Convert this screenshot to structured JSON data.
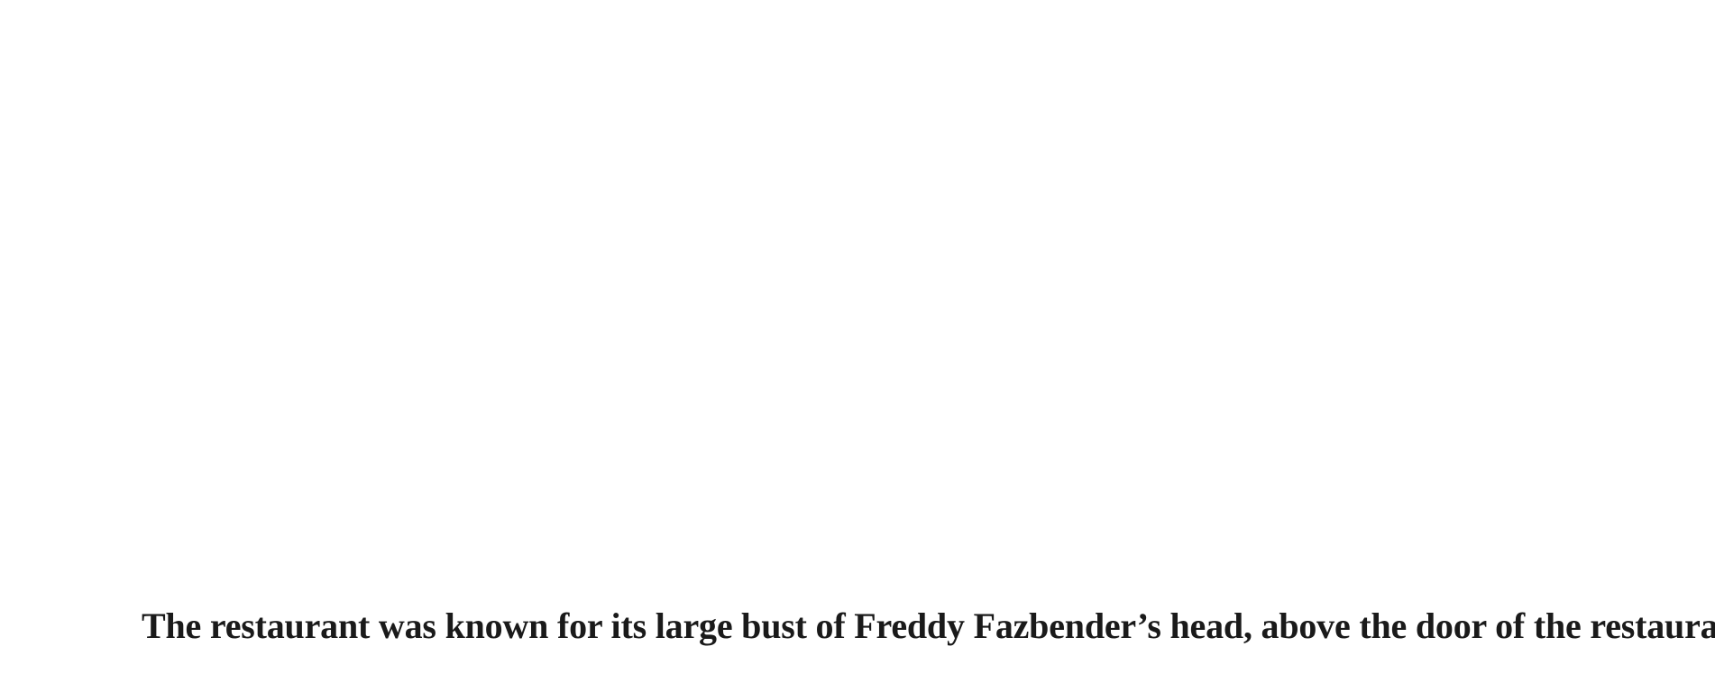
{
  "caption": {
    "text": "The restaurant was known for its large bust of Freddy Fazbender’s head, above the door of the restaurant."
  },
  "colors": {
    "background": "#ffffff",
    "text": "#1a1a1a"
  }
}
